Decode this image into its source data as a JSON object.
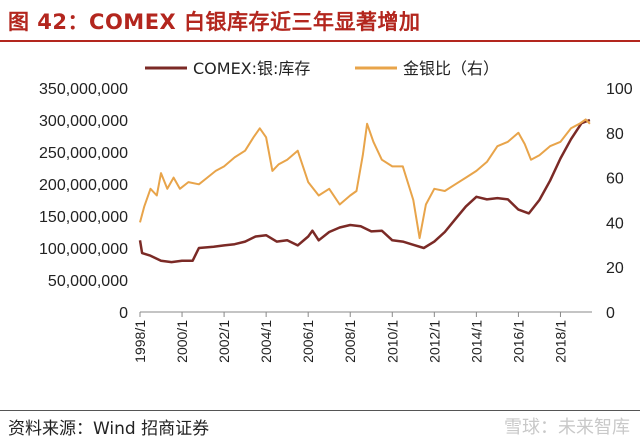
{
  "figure": {
    "title": "图 42：COMEX 白银库存近三年显著增加",
    "source": "资料来源：Wind  招商证券",
    "watermark": "雪球：未来智库"
  },
  "chart_data": {
    "type": "line",
    "legend_position": "top-center",
    "grid": false,
    "left_axis": {
      "ylim": [
        0,
        350000000
      ],
      "ticks": [
        "0",
        "50,000,000",
        "100,000,000",
        "150,000,000",
        "200,000,000",
        "250,000,000",
        "300,000,000",
        "350,000,000"
      ]
    },
    "right_axis": {
      "ylim": [
        0,
        100
      ],
      "ticks": [
        "0",
        "20",
        "40",
        "60",
        "80",
        "100"
      ]
    },
    "x_ticks": [
      "1998/1",
      "2000/1",
      "2002/1",
      "2004/1",
      "2006/1",
      "2008/1",
      "2010/1",
      "2012/1",
      "2014/1",
      "2016/1",
      "2018/1"
    ],
    "series": [
      {
        "name": "COMEX:银:库存",
        "axis": "left",
        "color": "#7b2a26",
        "points": [
          [
            1998.0,
            112000000
          ],
          [
            1998.1,
            92000000
          ],
          [
            1998.5,
            88000000
          ],
          [
            1999.0,
            80000000
          ],
          [
            1999.5,
            78000000
          ],
          [
            2000.0,
            80000000
          ],
          [
            2000.5,
            80000000
          ],
          [
            2000.8,
            100000000
          ],
          [
            2001.5,
            102000000
          ],
          [
            2002.0,
            104000000
          ],
          [
            2002.5,
            106000000
          ],
          [
            2003.0,
            110000000
          ],
          [
            2003.5,
            118000000
          ],
          [
            2004.0,
            120000000
          ],
          [
            2004.5,
            110000000
          ],
          [
            2005.0,
            112000000
          ],
          [
            2005.5,
            104000000
          ],
          [
            2006.0,
            118000000
          ],
          [
            2006.2,
            127000000
          ],
          [
            2006.5,
            112000000
          ],
          [
            2007.0,
            125000000
          ],
          [
            2007.5,
            132000000
          ],
          [
            2008.0,
            136000000
          ],
          [
            2008.5,
            134000000
          ],
          [
            2009.0,
            126000000
          ],
          [
            2009.5,
            127000000
          ],
          [
            2010.0,
            112000000
          ],
          [
            2010.5,
            110000000
          ],
          [
            2011.0,
            105000000
          ],
          [
            2011.5,
            100000000
          ],
          [
            2012.0,
            110000000
          ],
          [
            2012.5,
            125000000
          ],
          [
            2013.0,
            145000000
          ],
          [
            2013.5,
            165000000
          ],
          [
            2014.0,
            180000000
          ],
          [
            2014.5,
            176000000
          ],
          [
            2015.0,
            178000000
          ],
          [
            2015.5,
            176000000
          ],
          [
            2016.0,
            160000000
          ],
          [
            2016.5,
            154000000
          ],
          [
            2017.0,
            175000000
          ],
          [
            2017.5,
            205000000
          ],
          [
            2018.0,
            240000000
          ],
          [
            2018.5,
            270000000
          ],
          [
            2019.0,
            295000000
          ],
          [
            2019.4,
            300000000
          ]
        ]
      },
      {
        "name": "金银比（右）",
        "axis": "right",
        "color": "#e8a44a",
        "points": [
          [
            1998.0,
            40
          ],
          [
            1998.2,
            47
          ],
          [
            1998.5,
            55
          ],
          [
            1998.8,
            52
          ],
          [
            1999.0,
            62
          ],
          [
            1999.3,
            55
          ],
          [
            1999.6,
            60
          ],
          [
            1999.9,
            55
          ],
          [
            2000.3,
            58
          ],
          [
            2000.8,
            57
          ],
          [
            2001.2,
            60
          ],
          [
            2001.6,
            63
          ],
          [
            2002.0,
            65
          ],
          [
            2002.5,
            69
          ],
          [
            2003.0,
            72
          ],
          [
            2003.4,
            78
          ],
          [
            2003.7,
            82
          ],
          [
            2004.0,
            78
          ],
          [
            2004.3,
            63
          ],
          [
            2004.6,
            66
          ],
          [
            2005.0,
            68
          ],
          [
            2005.5,
            72
          ],
          [
            2006.0,
            58
          ],
          [
            2006.5,
            52
          ],
          [
            2007.0,
            55
          ],
          [
            2007.5,
            48
          ],
          [
            2008.0,
            52
          ],
          [
            2008.3,
            54
          ],
          [
            2008.6,
            70
          ],
          [
            2008.8,
            84
          ],
          [
            2009.1,
            76
          ],
          [
            2009.5,
            68
          ],
          [
            2010.0,
            65
          ],
          [
            2010.5,
            65
          ],
          [
            2011.0,
            50
          ],
          [
            2011.3,
            33
          ],
          [
            2011.6,
            48
          ],
          [
            2012.0,
            55
          ],
          [
            2012.5,
            54
          ],
          [
            2013.0,
            57
          ],
          [
            2013.5,
            60
          ],
          [
            2014.0,
            63
          ],
          [
            2014.5,
            67
          ],
          [
            2015.0,
            74
          ],
          [
            2015.5,
            76
          ],
          [
            2016.0,
            80
          ],
          [
            2016.3,
            75
          ],
          [
            2016.6,
            68
          ],
          [
            2017.0,
            70
          ],
          [
            2017.5,
            74
          ],
          [
            2018.0,
            76
          ],
          [
            2018.5,
            82
          ],
          [
            2018.9,
            84
          ],
          [
            2019.2,
            86
          ],
          [
            2019.4,
            84
          ]
        ]
      }
    ]
  }
}
